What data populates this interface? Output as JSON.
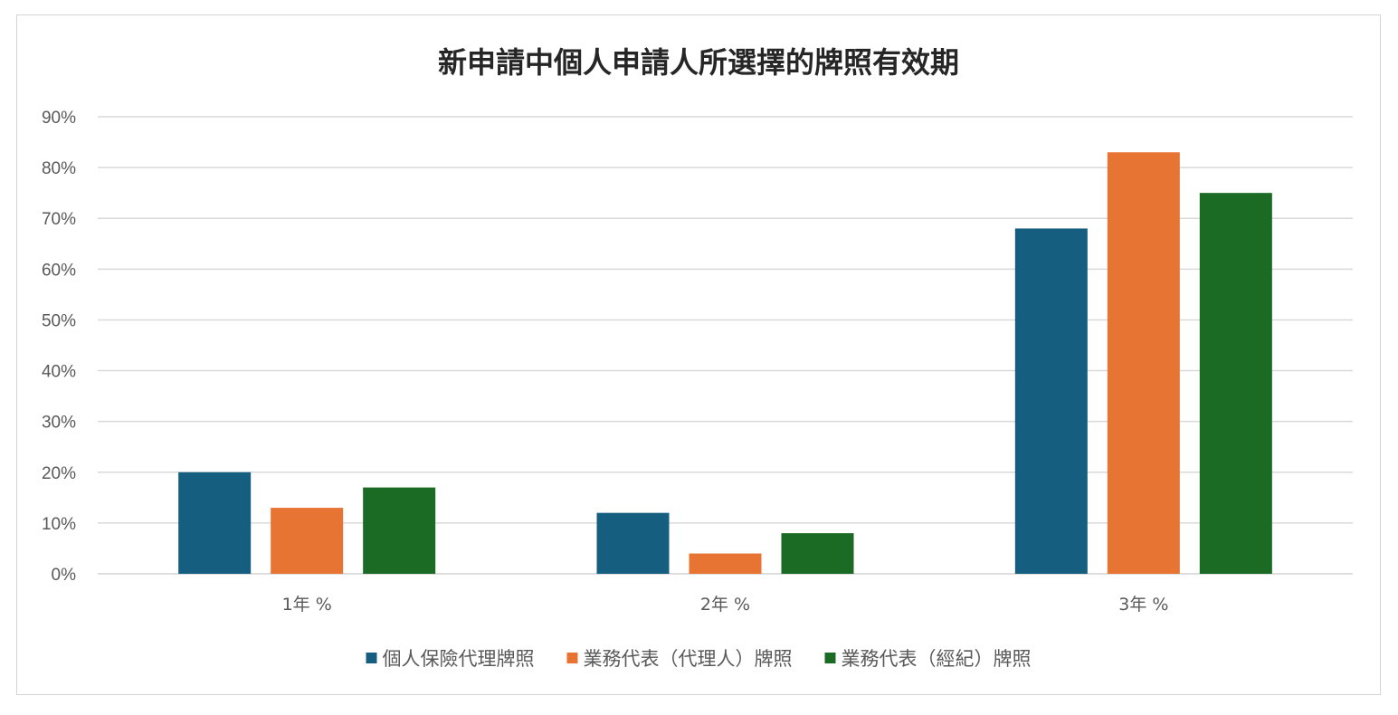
{
  "chart_data": {
    "type": "bar",
    "title": "新申請中個人申請人所選擇的牌照有效期",
    "xlabel": "",
    "ylabel": "",
    "categories": [
      "1年 %",
      "2年 %",
      "3年 %"
    ],
    "ylim": [
      0,
      90
    ],
    "yticks": [
      0,
      10,
      20,
      30,
      40,
      50,
      60,
      70,
      80,
      90
    ],
    "ytick_labels": [
      "0%",
      "10%",
      "20%",
      "30%",
      "40%",
      "50%",
      "60%",
      "70%",
      "80%",
      "90%"
    ],
    "grid": true,
    "legend_position": "bottom",
    "series": [
      {
        "name": "個人保險代理牌照",
        "color": "#165e80",
        "values": [
          20,
          12,
          68
        ]
      },
      {
        "name": "業務代表（代理人）牌照",
        "color": "#e87434",
        "values": [
          13,
          4,
          83
        ]
      },
      {
        "name": "業務代表（經紀）牌照",
        "color": "#1b6b24",
        "values": [
          17,
          8,
          75
        ]
      }
    ]
  }
}
